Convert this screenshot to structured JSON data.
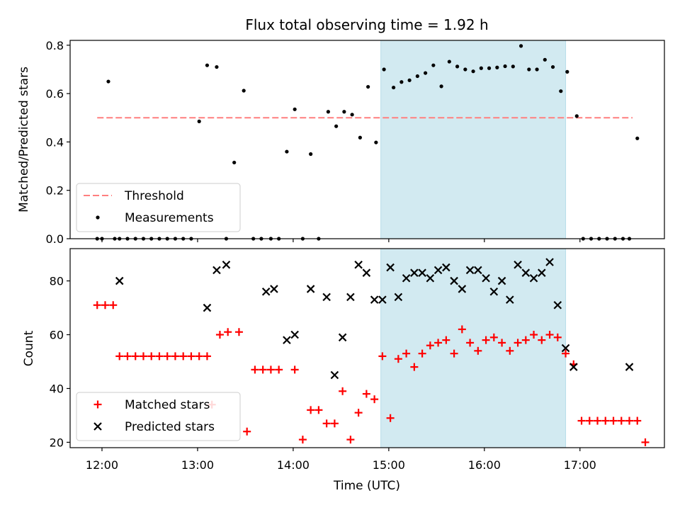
{
  "figure": {
    "title": "Flux total observing time = 1.92 h",
    "xlabel": "Time (UTC)"
  },
  "colors": {
    "threshold": "#ff7f7f",
    "measurement": "#000000",
    "matched": "#ff0000",
    "predicted": "#000000",
    "span": "#add8e6"
  },
  "chart_data": [
    {
      "type": "scatter",
      "ylabel": "Matched/Predicted stars",
      "ylim": [
        0,
        0.82
      ],
      "xlim": [
        "11:40",
        "17:53"
      ],
      "yticks": [
        0.0,
        0.2,
        0.4,
        0.6,
        0.8
      ],
      "ytick_labels": [
        "0.0",
        "0.2",
        "0.4",
        "0.6",
        "0.8"
      ],
      "xticks": [
        "12:00",
        "13:00",
        "14:00",
        "15:00",
        "16:00",
        "17:00"
      ],
      "highlight_span": [
        "14:55",
        "16:51"
      ],
      "grid": false,
      "legend": {
        "placement": "lower-left",
        "entries": [
          "Threshold",
          "Measurements"
        ]
      },
      "series": [
        {
          "name": "Threshold",
          "kind": "dashed-line",
          "x": [
            "11:57",
            "17:33"
          ],
          "y": [
            0.5,
            0.5
          ]
        },
        {
          "name": "Measurements",
          "kind": "points",
          "x": [
            "11:57",
            "12:00",
            "12:04",
            "12:08",
            "12:11",
            "12:16",
            "12:21",
            "12:26",
            "12:31",
            "12:36",
            "12:41",
            "12:46",
            "12:51",
            "12:56",
            "13:01",
            "13:06",
            "13:12",
            "13:18",
            "13:23",
            "13:29",
            "13:35",
            "13:40",
            "13:46",
            "13:51",
            "13:56",
            "14:01",
            "14:06",
            "14:11",
            "14:16",
            "14:22",
            "14:27",
            "14:32",
            "14:37",
            "14:42",
            "14:47",
            "14:52",
            "14:57",
            "15:03",
            "15:08",
            "15:13",
            "15:18",
            "15:23",
            "15:28",
            "15:33",
            "15:38",
            "15:43",
            "15:48",
            "15:53",
            "15:58",
            "16:03",
            "16:08",
            "16:13",
            "16:18",
            "16:23",
            "16:28",
            "16:33",
            "16:38",
            "16:43",
            "16:48",
            "16:52",
            "16:58",
            "17:02",
            "17:07",
            "17:12",
            "17:17",
            "17:22",
            "17:27",
            "17:31",
            "17:36"
          ],
          "y": [
            0,
            0,
            0.65,
            0,
            0,
            0,
            0,
            0,
            0,
            0,
            0,
            0,
            0,
            0,
            0.485,
            0.717,
            0.71,
            0,
            0.315,
            0.612,
            0,
            0,
            0,
            0,
            0.36,
            0.535,
            0,
            0.35,
            0,
            0.525,
            0.465,
            0.525,
            0.513,
            0.418,
            0.628,
            0.398,
            0.7,
            0.625,
            0.648,
            0.655,
            0.672,
            0.685,
            0.717,
            0.63,
            0.732,
            0.712,
            0.7,
            0.692,
            0.705,
            0.705,
            0.708,
            0.713,
            0.712,
            0.797,
            0.7,
            0.7,
            0.74,
            0.71,
            0.61,
            0.69,
            0.507,
            0,
            0,
            0,
            0,
            0,
            0,
            0,
            0.415
          ]
        }
      ]
    },
    {
      "type": "scatter",
      "ylabel": "Count",
      "ylim": [
        18,
        92
      ],
      "yticks": [
        20,
        40,
        60,
        80
      ],
      "ytick_labels": [
        "20",
        "40",
        "60",
        "80"
      ],
      "xticks": [
        "12:00",
        "13:00",
        "14:00",
        "15:00",
        "16:00",
        "17:00"
      ],
      "xtick_labels": [
        "12:00",
        "13:00",
        "14:00",
        "15:00",
        "16:00",
        "17:00"
      ],
      "highlight_span": [
        "14:55",
        "16:51"
      ],
      "grid": false,
      "legend": {
        "placement": "lower-left",
        "entries": [
          "Matched stars",
          "Predicted stars"
        ]
      },
      "series": [
        {
          "name": "Matched stars",
          "marker": "plus",
          "x": [
            "11:57",
            "12:02",
            "12:07",
            "12:11",
            "12:16",
            "12:21",
            "12:26",
            "12:31",
            "12:36",
            "12:41",
            "12:46",
            "12:51",
            "12:56",
            "13:01",
            "13:06",
            "13:09",
            "13:14",
            "13:19",
            "13:26",
            "13:31",
            "13:36",
            "13:41",
            "13:46",
            "13:51",
            "14:01",
            "14:06",
            "14:11",
            "14:16",
            "14:21",
            "14:26",
            "14:31",
            "14:36",
            "14:41",
            "14:46",
            "14:51",
            "14:56",
            "15:01",
            "15:06",
            "15:11",
            "15:16",
            "15:21",
            "15:26",
            "15:31",
            "15:36",
            "15:41",
            "15:46",
            "15:51",
            "15:56",
            "16:01",
            "16:06",
            "16:11",
            "16:16",
            "16:21",
            "16:26",
            "16:31",
            "16:36",
            "16:41",
            "16:46",
            "16:51",
            "16:56",
            "17:01",
            "17:06",
            "17:11",
            "17:16",
            "17:21",
            "17:26",
            "17:31",
            "17:36",
            "17:41"
          ],
          "y": [
            71,
            71,
            71,
            52,
            52,
            52,
            52,
            52,
            52,
            52,
            52,
            52,
            52,
            52,
            52,
            34,
            60,
            61,
            61,
            24,
            47,
            47,
            47,
            47,
            47,
            21,
            32,
            32,
            27,
            27,
            39,
            21,
            31,
            38,
            36,
            52,
            29,
            51,
            53,
            48,
            53,
            56,
            57,
            58,
            53,
            62,
            57,
            54,
            58,
            59,
            57,
            54,
            57,
            58,
            60,
            58,
            60,
            59,
            53,
            49,
            28,
            28,
            28,
            28,
            28,
            28,
            28,
            28,
            20
          ],
          "x_display_fix": [
            "17:31",
            "17:36"
          ]
        },
        {
          "name": "Predicted stars",
          "marker": "x",
          "x": [
            "12:11",
            "13:06",
            "13:12",
            "13:18",
            "13:43",
            "13:48",
            "13:56",
            "14:01",
            "14:11",
            "14:21",
            "14:26",
            "14:31",
            "14:36",
            "14:41",
            "14:46",
            "14:51",
            "14:56",
            "15:01",
            "15:06",
            "15:11",
            "15:16",
            "15:21",
            "15:26",
            "15:31",
            "15:36",
            "15:41",
            "15:46",
            "15:51",
            "15:56",
            "16:01",
            "16:06",
            "16:11",
            "16:16",
            "16:21",
            "16:26",
            "16:31",
            "16:36",
            "16:41",
            "16:46",
            "16:51",
            "16:56",
            "17:31"
          ],
          "y": [
            80,
            70,
            84,
            86,
            76,
            77,
            58,
            60,
            77,
            74,
            45,
            59,
            74,
            86,
            83,
            73,
            73,
            85,
            74,
            81,
            83,
            83,
            81,
            84,
            85,
            80,
            77,
            84,
            84,
            81,
            76,
            80,
            73,
            86,
            83,
            81,
            83,
            87,
            71,
            55,
            48,
            48
          ]
        }
      ]
    }
  ]
}
